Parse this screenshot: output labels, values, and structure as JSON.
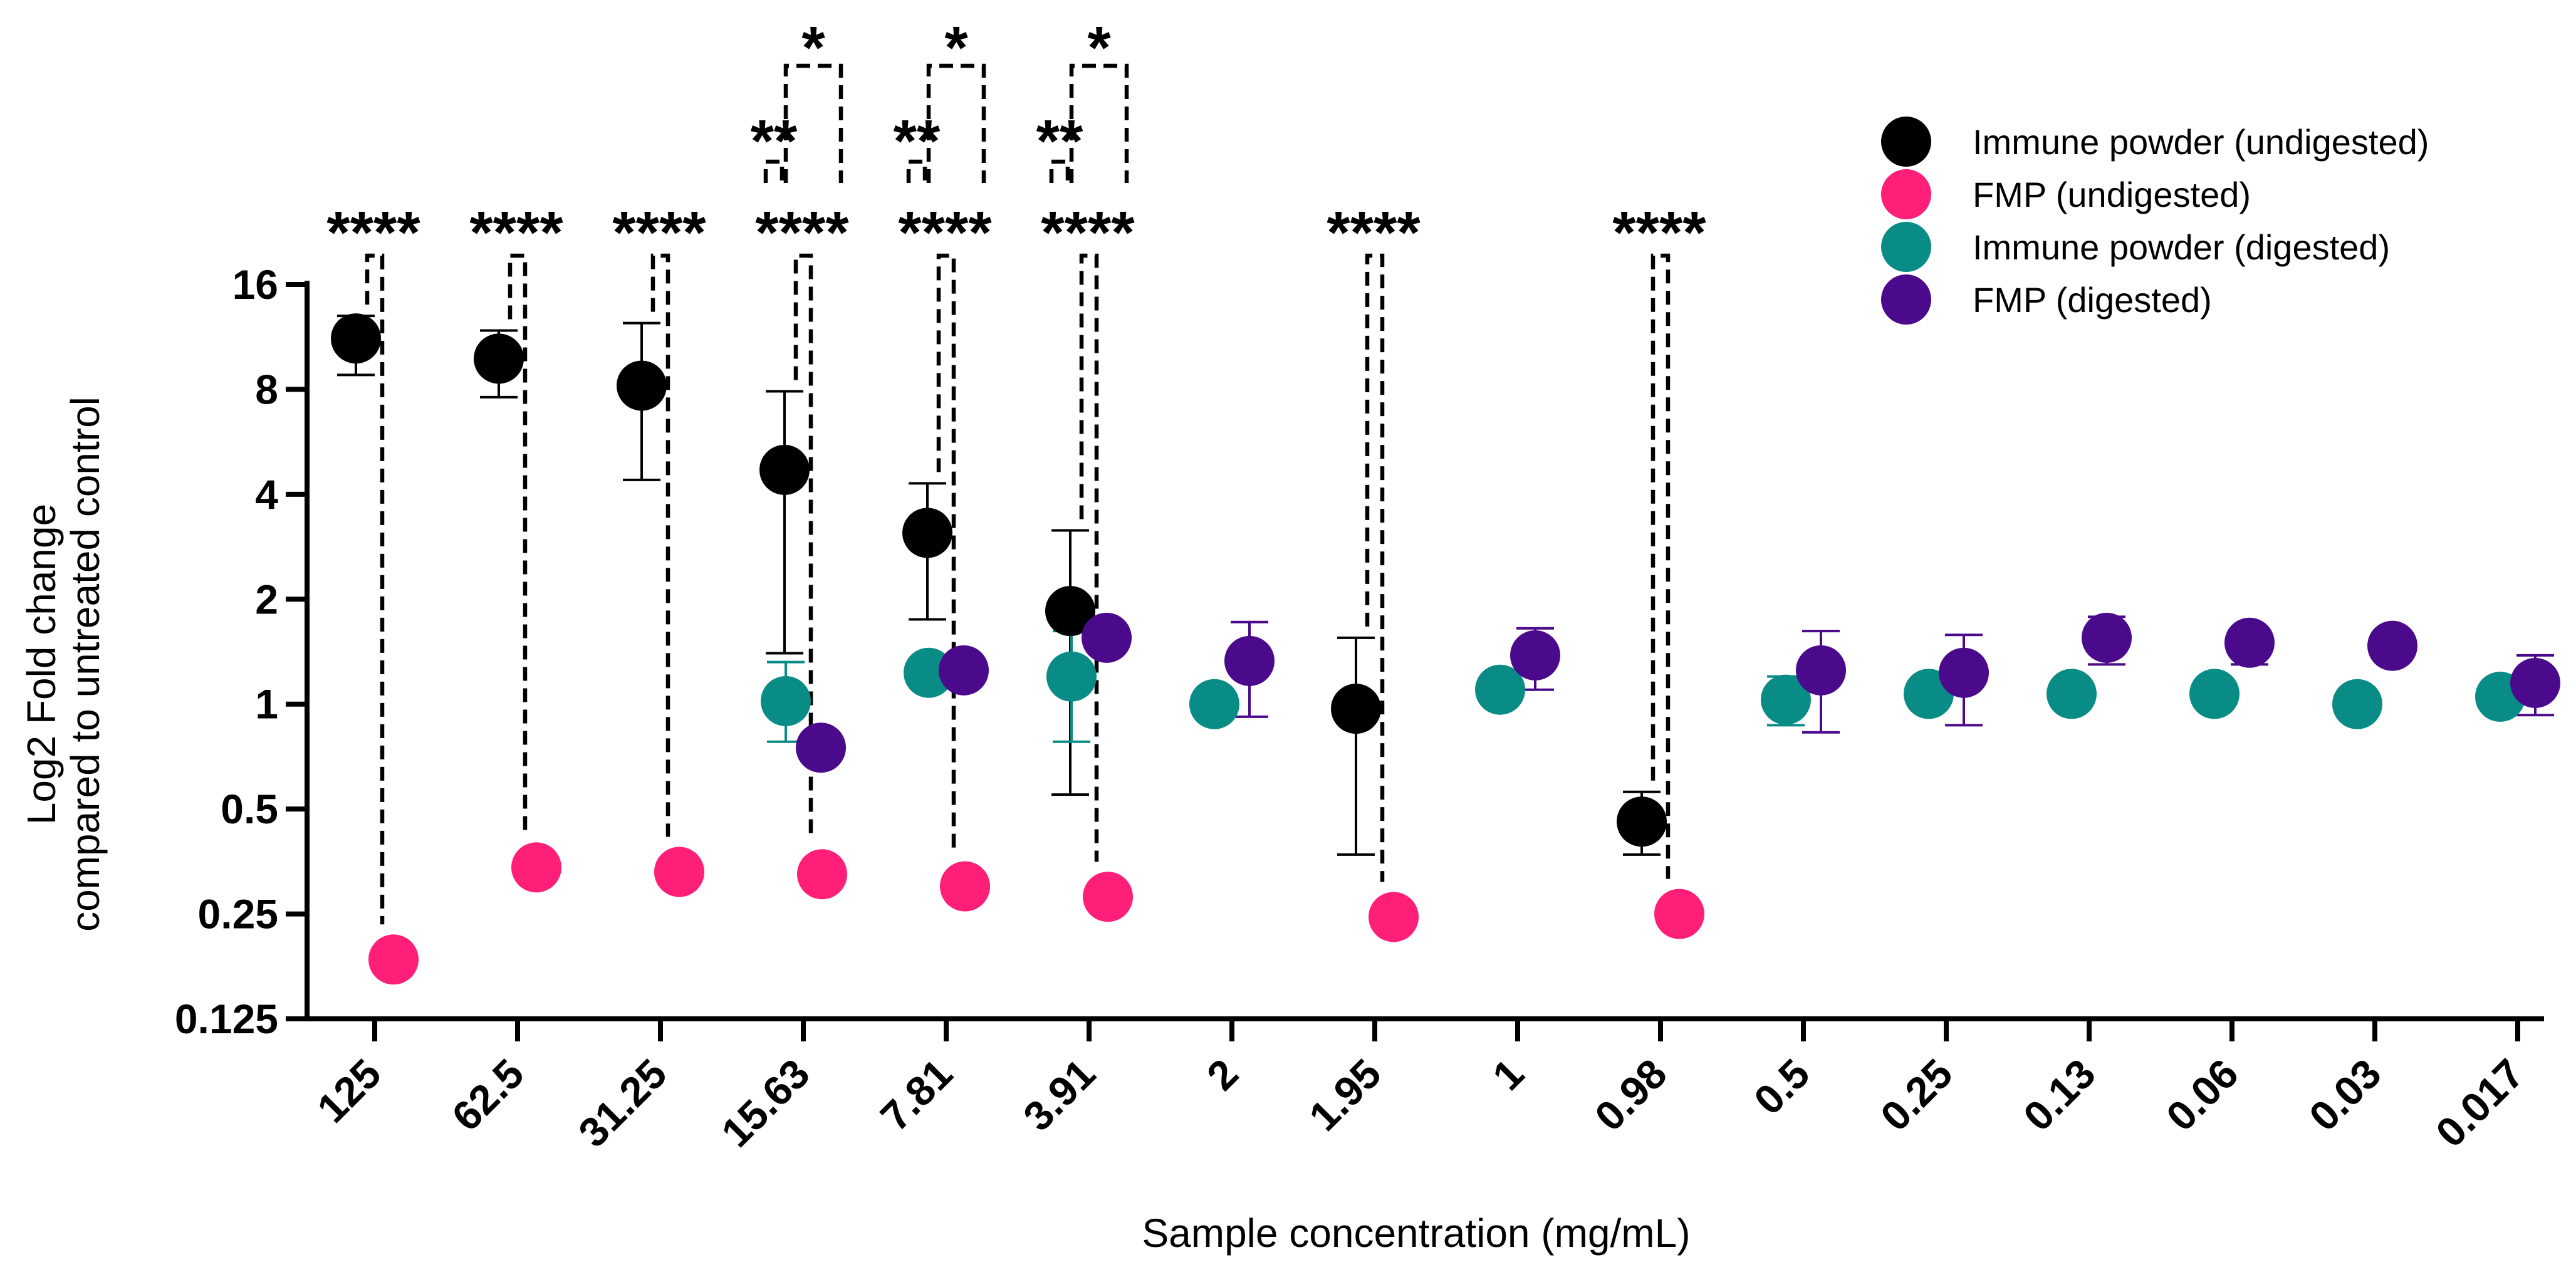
{
  "chart_data": {
    "type": "scatter",
    "title": "",
    "xlabel": "Sample concentration (mg/mL)",
    "ylabel_line1": "Log2 Fold change",
    "ylabel_line2": "compared to untreated control",
    "yscale": "log2",
    "ylim": [
      0.125,
      16
    ],
    "yticks": [
      {
        "value": 16,
        "label": "16"
      },
      {
        "value": 8,
        "label": "8"
      },
      {
        "value": 4,
        "label": "4"
      },
      {
        "value": 2,
        "label": "2"
      },
      {
        "value": 1,
        "label": "1"
      },
      {
        "value": 0.5,
        "label": "0.5"
      },
      {
        "value": 0.25,
        "label": "0.25"
      },
      {
        "value": 0.125,
        "label": "0.125"
      }
    ],
    "categories": [
      "125",
      "62.5",
      "31.25",
      "15.63",
      "7.81",
      "3.91",
      "2",
      "1.95",
      "1",
      "0.98",
      "0.5",
      "0.25",
      "0.13",
      "0.06",
      "0.03",
      "0.017"
    ],
    "legend_position": "top-right",
    "series": [
      {
        "name": "Immune powder (undigested)",
        "color": "#000000",
        "points": [
          {
            "category": "125",
            "y": 11.2,
            "err_low": 8.8,
            "err_high": 13.0
          },
          {
            "category": "62.5",
            "y": 9.8,
            "err_low": 7.6,
            "err_high": 11.8
          },
          {
            "category": "31.25",
            "y": 8.2,
            "err_low": 4.4,
            "err_high": 12.4
          },
          {
            "category": "15.63",
            "y": 4.7,
            "err_low": 1.4,
            "err_high": 7.9
          },
          {
            "category": "7.81",
            "y": 3.1,
            "err_low": 1.75,
            "err_high": 4.3
          },
          {
            "category": "3.91",
            "y": 1.85,
            "err_low": 0.55,
            "err_high": 3.15
          },
          {
            "category": "1.95",
            "y": 0.97,
            "err_low": 0.37,
            "err_high": 1.55
          },
          {
            "category": "0.98",
            "y": 0.46,
            "err_low": 0.37,
            "err_high": 0.56
          }
        ]
      },
      {
        "name": "FMP (undigested)",
        "color": "#FF1E78",
        "points": [
          {
            "category": "125",
            "y": 0.185,
            "err_low": 0.176,
            "err_high": 0.194
          },
          {
            "category": "62.5",
            "y": 0.34,
            "err_low": 0.31,
            "err_high": 0.37
          },
          {
            "category": "31.25",
            "y": 0.33,
            "err_low": 0.315,
            "err_high": 0.345
          },
          {
            "category": "15.63",
            "y": 0.325,
            "err_low": 0.31,
            "err_high": 0.34
          },
          {
            "category": "7.81",
            "y": 0.3,
            "err_low": 0.29,
            "err_high": 0.31
          },
          {
            "category": "3.91",
            "y": 0.28,
            "err_low": 0.27,
            "err_high": 0.29
          },
          {
            "category": "1.95",
            "y": 0.245,
            "err_low": 0.235,
            "err_high": 0.255
          },
          {
            "category": "0.98",
            "y": 0.25,
            "err_low": 0.245,
            "err_high": 0.255
          }
        ]
      },
      {
        "name": "Immune powder (digested)",
        "color": "#0A8C86",
        "points": [
          {
            "category": "15.63",
            "y": 1.02,
            "err_low": 0.78,
            "err_high": 1.32
          },
          {
            "category": "7.81",
            "y": 1.23,
            "err_low": 1.18,
            "err_high": 1.28
          },
          {
            "category": "3.91",
            "y": 1.2,
            "err_low": 0.78,
            "err_high": 1.62
          },
          {
            "category": "2",
            "y": 1.0,
            "err_low": 0.93,
            "err_high": 1.08
          },
          {
            "category": "1",
            "y": 1.1,
            "err_low": 1.05,
            "err_high": 1.15
          },
          {
            "category": "0.5",
            "y": 1.03,
            "err_low": 0.87,
            "err_high": 1.2
          },
          {
            "category": "0.25",
            "y": 1.07,
            "err_low": 1.02,
            "err_high": 1.12
          },
          {
            "category": "0.13",
            "y": 1.07,
            "err_low": 1.02,
            "err_high": 1.12
          },
          {
            "category": "0.06",
            "y": 1.07,
            "err_low": 1.02,
            "err_high": 1.12
          },
          {
            "category": "0.03",
            "y": 1.0,
            "err_low": 0.96,
            "err_high": 1.04
          },
          {
            "category": "0.017",
            "y": 1.05,
            "err_low": 1.0,
            "err_high": 1.1
          }
        ]
      },
      {
        "name": "FMP (digested)",
        "color": "#4B0A8C",
        "points": [
          {
            "category": "15.63",
            "y": 0.75,
            "err_low": 0.72,
            "err_high": 0.78
          },
          {
            "category": "7.81",
            "y": 1.25,
            "err_low": 1.2,
            "err_high": 1.3
          },
          {
            "category": "3.91",
            "y": 1.55,
            "err_low": 1.45,
            "err_high": 1.65
          },
          {
            "category": "2",
            "y": 1.33,
            "err_low": 0.92,
            "err_high": 1.72
          },
          {
            "category": "1",
            "y": 1.38,
            "err_low": 1.1,
            "err_high": 1.65
          },
          {
            "category": "0.5",
            "y": 1.25,
            "err_low": 0.83,
            "err_high": 1.62
          },
          {
            "category": "0.25",
            "y": 1.23,
            "err_low": 0.87,
            "err_high": 1.58
          },
          {
            "category": "0.13",
            "y": 1.55,
            "err_low": 1.3,
            "err_high": 1.78
          },
          {
            "category": "0.06",
            "y": 1.5,
            "err_low": 1.3,
            "err_high": 1.62
          },
          {
            "category": "0.03",
            "y": 1.47,
            "err_low": 1.35,
            "err_high": 1.6
          },
          {
            "category": "0.017",
            "y": 1.15,
            "err_low": 0.93,
            "err_high": 1.38
          }
        ]
      }
    ],
    "comparisons": [
      {
        "category": "125",
        "bracket": "long",
        "label": "****"
      },
      {
        "category": "62.5",
        "bracket": "long",
        "label": "****"
      },
      {
        "category": "31.25",
        "bracket": "long",
        "label": "****"
      },
      {
        "category": "15.63",
        "bracket": "long",
        "label": "****"
      },
      {
        "category": "15.63",
        "bracket": "small",
        "label": "**"
      },
      {
        "category": "15.63",
        "bracket": "top",
        "label": "*"
      },
      {
        "category": "7.81",
        "bracket": "long",
        "label": "****"
      },
      {
        "category": "7.81",
        "bracket": "small",
        "label": "**"
      },
      {
        "category": "7.81",
        "bracket": "top",
        "label": "*"
      },
      {
        "category": "3.91",
        "bracket": "long",
        "label": "****"
      },
      {
        "category": "3.91",
        "bracket": "small",
        "label": "**"
      },
      {
        "category": "3.91",
        "bracket": "top",
        "label": "*"
      },
      {
        "category": "1.95",
        "bracket": "long",
        "label": "****"
      },
      {
        "category": "0.98",
        "bracket": "long",
        "label": "****"
      }
    ]
  }
}
